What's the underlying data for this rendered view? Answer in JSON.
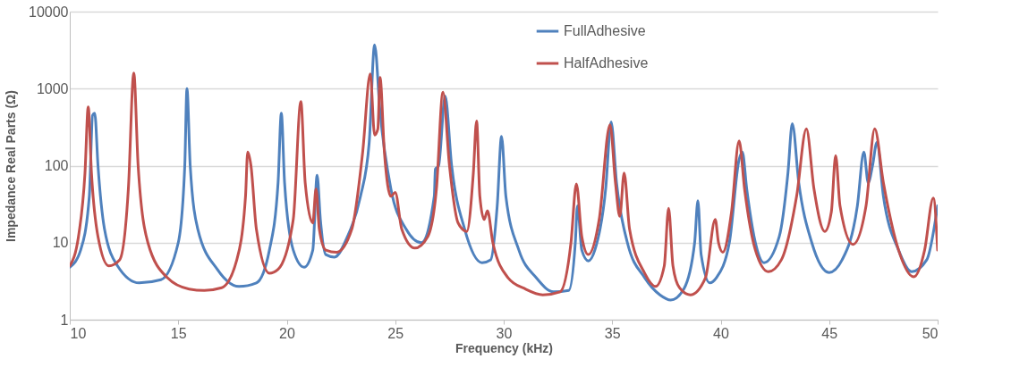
{
  "chart_data": {
    "type": "line",
    "xlabel": "Frequency (kHz)",
    "ylabel": "Impedance Real Parts (Ω)",
    "xlim": [
      10,
      50
    ],
    "xticks": [
      10,
      15,
      20,
      25,
      30,
      35,
      40,
      45,
      50
    ],
    "ylim": [
      1,
      10000
    ],
    "yticks": [
      1,
      10,
      100,
      1000,
      10000
    ],
    "log": "y",
    "grid": "y",
    "legend": "top right",
    "line_style": "solid",
    "marker": "none",
    "series": [
      {
        "name": "FullAdhesive",
        "color": "#4f81bd",
        "x": [
          10.0,
          10.5,
          10.9,
          11.05,
          11.15,
          11.3,
          11.6,
          12.2,
          13.2,
          14.2,
          15.0,
          15.3,
          15.4,
          15.55,
          15.9,
          16.8,
          17.8,
          18.6,
          19.2,
          19.6,
          19.75,
          19.9,
          20.3,
          20.8,
          21.2,
          21.4,
          21.55,
          21.8,
          22.2,
          22.8,
          23.4,
          23.8,
          24.05,
          24.3,
          24.8,
          25.5,
          26.2,
          26.8,
          26.85,
          27.0,
          27.3,
          27.6,
          28.2,
          29.0,
          29.4,
          29.7,
          29.9,
          30.1,
          30.7,
          31.5,
          32.3,
          33.0,
          33.3,
          33.4,
          33.6,
          33.9,
          34.2,
          34.7,
          34.95,
          35.2,
          35.7,
          36.5,
          37.2,
          37.7,
          38.3,
          38.8,
          38.95,
          39.1,
          39.5,
          39.8,
          40.4,
          40.85,
          41.0,
          41.2,
          41.6,
          42.0,
          42.7,
          43.1,
          43.3,
          43.6,
          44.2,
          45.0,
          45.6,
          46.3,
          46.6,
          46.8,
          47.0,
          47.2,
          47.5,
          48.2,
          48.8,
          49.5,
          50.0
        ],
        "values": [
          4.8,
          8,
          40,
          450,
          480,
          100,
          15,
          5,
          3.0,
          3.3,
          10,
          100,
          1000,
          100,
          15,
          4.5,
          2.7,
          3,
          8,
          60,
          480,
          60,
          8,
          4.8,
          8,
          75,
          20,
          7,
          6.5,
          12,
          40,
          200,
          3700,
          500,
          50,
          15,
          10,
          40,
          90,
          100,
          800,
          100,
          15,
          5.5,
          6,
          30,
          240,
          40,
          8,
          3.5,
          2.3,
          2.4,
          10,
          30,
          8,
          5.8,
          8,
          50,
          370,
          60,
          10,
          3.5,
          2.1,
          1.8,
          2.5,
          10,
          35,
          7,
          3,
          3.5,
          10,
          120,
          150,
          50,
          10,
          5.5,
          12,
          80,
          350,
          60,
          10,
          4.1,
          6,
          30,
          150,
          60,
          100,
          200,
          40,
          8,
          4.2,
          6,
          30
        ]
      },
      {
        "name": "HalfAdhesive",
        "color": "#c0504d",
        "x": [
          10.0,
          10.4,
          10.7,
          10.85,
          11.0,
          11.3,
          11.8,
          12.3,
          12.7,
          12.95,
          13.15,
          13.6,
          14.5,
          15.5,
          16.2,
          17.0,
          17.7,
          18.1,
          18.2,
          18.35,
          18.6,
          19.2,
          19.6,
          20.3,
          20.65,
          20.85,
          21.2,
          21.35,
          21.5,
          21.8,
          22.3,
          23.0,
          23.5,
          23.85,
          24.05,
          24.2,
          24.3,
          24.5,
          24.8,
          25.0,
          25.3,
          25.9,
          26.5,
          26.9,
          27.2,
          27.5,
          27.9,
          28.3,
          28.6,
          28.75,
          28.9,
          29.1,
          29.25,
          29.5,
          30.2,
          31.0,
          31.8,
          32.6,
          33.1,
          33.35,
          33.6,
          33.9,
          34.4,
          34.9,
          35.15,
          35.35,
          35.55,
          35.8,
          36.5,
          37.0,
          37.4,
          37.6,
          37.8,
          38.1,
          38.6,
          39.3,
          39.75,
          39.9,
          40.1,
          40.5,
          40.85,
          41.1,
          41.6,
          42.2,
          42.8,
          43.5,
          43.95,
          44.3,
          44.8,
          45.1,
          45.3,
          45.5,
          46.1,
          46.7,
          47.1,
          47.5,
          48.2,
          48.9,
          49.4,
          49.8,
          50.0
        ],
        "values": [
          5,
          12,
          80,
          580,
          80,
          12,
          5,
          6,
          50,
          1600,
          100,
          10,
          3.5,
          2.5,
          2.4,
          2.6,
          6,
          40,
          150,
          100,
          15,
          4,
          4.5,
          20,
          680,
          60,
          18,
          50,
          15,
          8,
          7.5,
          15,
          150,
          1550,
          250,
          300,
          1400,
          150,
          40,
          45,
          15,
          8.5,
          12,
          50,
          900,
          100,
          18,
          14,
          80,
          380,
          40,
          20,
          26,
          10,
          3.5,
          2.5,
          2.1,
          2.3,
          10,
          58,
          12,
          7,
          20,
          340,
          60,
          22,
          80,
          15,
          4,
          2.7,
          5,
          28,
          5,
          2.6,
          2.1,
          3.5,
          20,
          10,
          7.5,
          25,
          210,
          50,
          8,
          4.2,
          6,
          40,
          300,
          50,
          14,
          25,
          135,
          30,
          9.5,
          30,
          300,
          60,
          8,
          3.6,
          8,
          38,
          8
        ]
      }
    ]
  }
}
